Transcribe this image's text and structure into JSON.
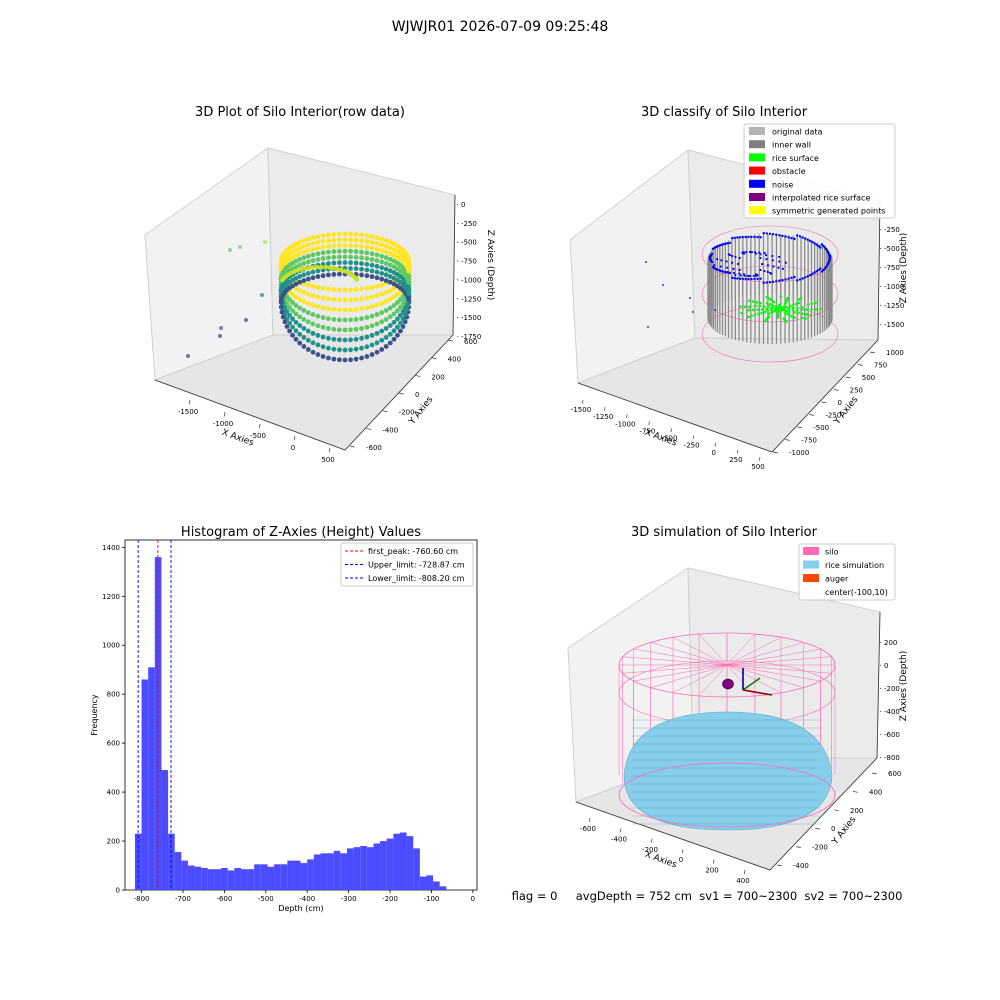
{
  "figure": {
    "suptitle": "WJWJR01 2026-07-09 09:25:48",
    "footer": "flag = 0     avgDepth = 752 cm  sv1 = 700~2300  sv2 = 700~2300"
  },
  "colors": {
    "hist_bar": "#4b4bff",
    "first_peak": "#ff0000",
    "limits": "#0000ff",
    "pane": "#f2f2f2",
    "silo": "#ff69b4",
    "rice_sim": "#87ceeb",
    "auger": "#ff4500"
  },
  "chart_data": [
    {
      "id": "raw",
      "type": "scatter3d",
      "title": "3D Plot of Silo Interior(row data)",
      "xlabel": "X Axies",
      "ylabel": "Y Axies",
      "zlabel": "Z Axies (Depth)",
      "xticks": [
        "-1500",
        "-1000",
        "-500",
        "0",
        "500"
      ],
      "yticks": [
        "-600",
        "-400",
        "-200",
        "0",
        "200",
        "400",
        "600"
      ],
      "zticks": [
        "0",
        "-250",
        "-500",
        "-750",
        "-1000",
        "-1250",
        "-1500",
        "-1750"
      ],
      "xlim": [
        -1600,
        600
      ],
      "ylim": [
        -650,
        650
      ],
      "zlim": [
        -1800,
        0
      ],
      "colormap": "viridis"
    },
    {
      "id": "classify",
      "type": "scatter3d",
      "title": "3D classify of Silo Interior",
      "xlabel": "X Axies",
      "ylabel": "Y Axies",
      "zlabel": "Z Axies (Depth)",
      "xticks": [
        "-1500",
        "-1250",
        "-1000",
        "-750",
        "-500",
        "-250",
        "0",
        "250",
        "500"
      ],
      "yticks": [
        "-1000",
        "-750",
        "-500",
        "-250",
        "0",
        "250",
        "500",
        "750",
        "1000"
      ],
      "zticks": [
        "0",
        "-250",
        "-500",
        "-750",
        "-1000",
        "-1250",
        "-1500"
      ],
      "legend": [
        {
          "label": "original data",
          "color": "#b4b4b4"
        },
        {
          "label": "inner wall",
          "color": "#808080"
        },
        {
          "label": "rice surface",
          "color": "#00ff00"
        },
        {
          "label": "obstacle",
          "color": "#ff0000"
        },
        {
          "label": "noise",
          "color": "#0000ff"
        },
        {
          "label": "interpolated rice surface",
          "color": "#800080"
        },
        {
          "label": "symmetric generated points",
          "color": "#ffff00"
        }
      ],
      "legend_loc": "upper right"
    },
    {
      "id": "hist",
      "type": "bar",
      "title": "Histogram of Z-Axies (Height) Values",
      "xlabel": "Depth (cm)",
      "ylabel": "Frequency",
      "xlim": [
        -840,
        10
      ],
      "ylim": [
        0,
        1430
      ],
      "xticks": [
        -800,
        -700,
        -600,
        -500,
        -400,
        -300,
        -200,
        -100,
        0
      ],
      "yticks": [
        0,
        200,
        400,
        600,
        800,
        1000,
        1200,
        1400
      ],
      "bin_width": 16,
      "bin_start": -816,
      "values": [
        230,
        860,
        910,
        1360,
        490,
        230,
        155,
        120,
        100,
        95,
        90,
        85,
        85,
        90,
        80,
        90,
        85,
        85,
        105,
        105,
        95,
        105,
        105,
        120,
        120,
        110,
        125,
        145,
        150,
        150,
        160,
        150,
        170,
        175,
        180,
        175,
        190,
        200,
        210,
        230,
        235,
        220,
        170,
        55,
        60,
        35,
        15
      ],
      "lines": [
        {
          "label": "first_peak: -760.60 cm",
          "x": -760.6,
          "color": "#ff0000"
        },
        {
          "label": "Upper_limit: -728.87 cm",
          "x": -728.87,
          "color": "#0000ff"
        },
        {
          "label": "Lower_limit: -808.20 cm",
          "x": -808.2,
          "color": "#0000ff"
        }
      ],
      "legend_loc": "upper right"
    },
    {
      "id": "sim",
      "type": "surface3d",
      "title": "3D simulation of Silo Interior",
      "xlabel": "X Axies",
      "ylabel": "Y Axies",
      "zlabel": "Z Axies (Depth)",
      "xticks": [
        "-600",
        "-400",
        "-200",
        "0",
        "200",
        "400"
      ],
      "yticks": [
        "-400",
        "-200",
        "0",
        "200",
        "400",
        "600"
      ],
      "zticks": [
        "200",
        "0",
        "-200",
        "-400",
        "-600",
        "-800"
      ],
      "legend": [
        {
          "label": "silo",
          "color": "#ff69b4"
        },
        {
          "label": "rice simulation",
          "color": "#87ceeb"
        },
        {
          "label": "auger",
          "color": "#ff4500"
        },
        {
          "label": "center(-100,10)",
          "color": ""
        }
      ],
      "legend_loc": "upper right"
    }
  ]
}
